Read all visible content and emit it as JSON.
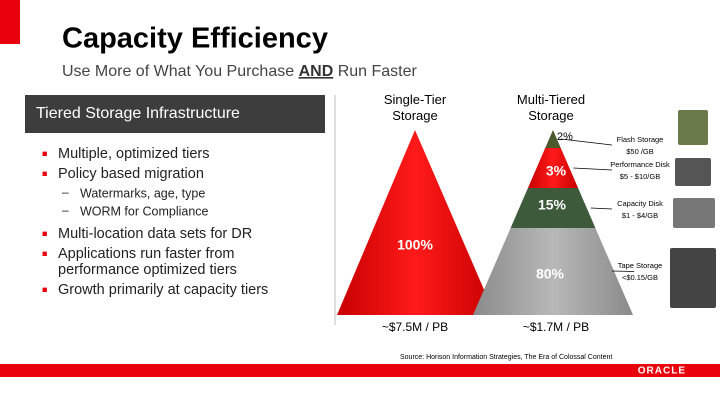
{
  "header": {
    "title": "Capacity Efficiency",
    "subtitle_before": "Use More of What You Purchase",
    "subtitle_emphasis": "AND",
    "subtitle_after": "Run Faster"
  },
  "left_panel": {
    "heading": "Tiered Storage Infrastructure",
    "bullets": [
      {
        "text": "Multiple, optimized tiers",
        "level": 1
      },
      {
        "text": "Policy based migration",
        "level": 1
      },
      {
        "text": "Watermarks, age, type",
        "level": 2
      },
      {
        "text": "WORM for Compliance",
        "level": 2
      },
      {
        "text": "Multi-location data sets for DR",
        "level": 1
      },
      {
        "text": "Applications run faster from performance optimized tiers",
        "level": 1
      },
      {
        "text": "Growth primarily at capacity tiers",
        "level": 1
      }
    ]
  },
  "single_tier": {
    "heading": "Single-Tier Storage",
    "share": "100%",
    "cost": "~$7.5M / PB"
  },
  "multi_tier": {
    "heading": "Multi-Tiered Storage",
    "cost": "~$1.7M / PB",
    "tiers": [
      {
        "share": "2%",
        "name": "Flash Storage",
        "price": "$50 /GB"
      },
      {
        "share": "3%",
        "name": "Performance Disk",
        "price": "$5 - $10/GB"
      },
      {
        "share": "15%",
        "name": "Capacity Disk",
        "price": "$1 - $4/GB"
      },
      {
        "share": "80%",
        "name": "Tape Storage",
        "price": "<$0.15/GB"
      }
    ]
  },
  "footer": {
    "source": "Source: Horison Information Strategies, The Era of Colossal Content",
    "logo": "ORACLE"
  }
}
